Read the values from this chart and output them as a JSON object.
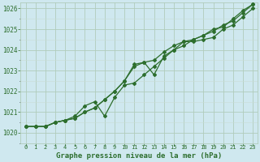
{
  "title": "Graphe pression niveau de la mer (hPa)",
  "background_color": "#cfe8ef",
  "grid_color_major": "#b0ccbb",
  "grid_color_minor": "#c8ddd5",
  "line_color": "#2d6e2d",
  "x_labels": [
    "0",
    "1",
    "2",
    "3",
    "4",
    "5",
    "6",
    "7",
    "8",
    "9",
    "10",
    "11",
    "12",
    "13",
    "14",
    "15",
    "16",
    "17",
    "18",
    "19",
    "20",
    "21",
    "22",
    "23"
  ],
  "ylim": [
    1019.5,
    1026.3
  ],
  "yticks": [
    1020,
    1021,
    1022,
    1023,
    1024,
    1025,
    1026
  ],
  "series1": [
    1020.3,
    1020.3,
    1020.3,
    1020.5,
    1020.6,
    1020.7,
    1021.0,
    1021.2,
    1021.6,
    1022.0,
    1022.5,
    1023.2,
    1023.4,
    1023.5,
    1023.9,
    1024.2,
    1024.4,
    1024.5,
    1024.7,
    1024.9,
    1025.2,
    1025.4,
    1025.8,
    1026.2
  ],
  "series2": [
    1020.3,
    1020.3,
    1020.3,
    1020.5,
    1020.6,
    1020.7,
    1021.0,
    1021.2,
    1021.6,
    1022.0,
    1022.5,
    1023.3,
    1023.4,
    1022.8,
    1023.7,
    1024.0,
    1024.4,
    1024.4,
    1024.5,
    1024.6,
    1025.0,
    1025.2,
    1025.6,
    1026.0
  ],
  "series3": [
    1020.3,
    1020.3,
    1020.3,
    1020.5,
    1020.6,
    1020.8,
    1021.3,
    1021.5,
    1020.8,
    1021.7,
    1022.3,
    1022.4,
    1022.8,
    1023.2,
    1023.6,
    1024.0,
    1024.2,
    1024.5,
    1024.7,
    1025.0,
    1025.1,
    1025.5,
    1025.9,
    1026.2
  ],
  "ylabel_fontsize": 5.5,
  "xlabel_fontsize": 5.0,
  "title_fontsize": 6.5
}
